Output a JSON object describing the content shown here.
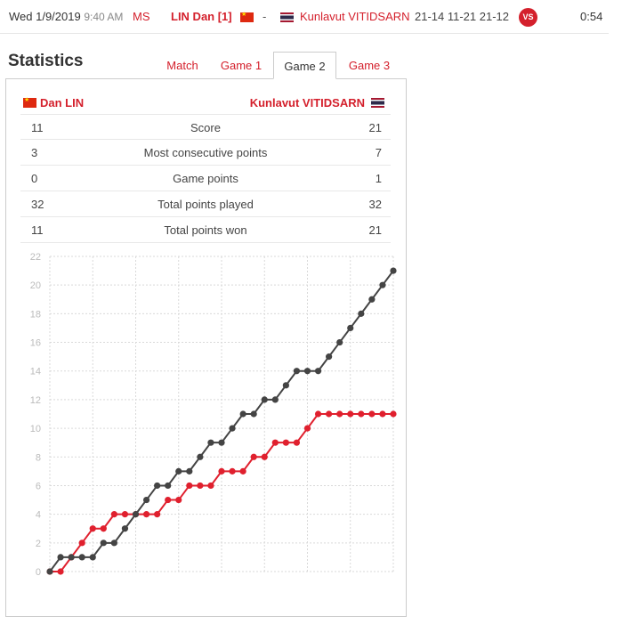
{
  "match": {
    "date": "Wed 1/9/2019",
    "time": "9:40 AM",
    "event": "MS",
    "player1": "LIN Dan [1]",
    "separator": "-",
    "player2": "Kunlavut VITIDSARN",
    "scores": "21-14 11-21 21-12",
    "vs_label": "VS",
    "duration": "0:54"
  },
  "statistics": {
    "title": "Statistics",
    "tabs": [
      {
        "label": "Match",
        "active": false
      },
      {
        "label": "Game 1",
        "active": false
      },
      {
        "label": "Game 2",
        "active": true
      },
      {
        "label": "Game 3",
        "active": false
      }
    ],
    "left_player": "Dan LIN",
    "right_player": "Kunlavut VITIDSARN",
    "rows": [
      {
        "left": "11",
        "label": "Score",
        "right": "21"
      },
      {
        "left": "3",
        "label": "Most consecutive points",
        "right": "7"
      },
      {
        "left": "0",
        "label": "Game points",
        "right": "1"
      },
      {
        "left": "32",
        "label": "Total points played",
        "right": "32"
      },
      {
        "left": "11",
        "label": "Total points won",
        "right": "21"
      }
    ]
  },
  "colors": {
    "accent": "#d4202c",
    "series_red": "#e0202e",
    "series_dark": "#444444",
    "grid": "#d9d9d9"
  },
  "chart_data": {
    "type": "line",
    "x": [
      0,
      1,
      2,
      3,
      4,
      5,
      6,
      7,
      8,
      9,
      10,
      11,
      12,
      13,
      14,
      15,
      16,
      17,
      18,
      19,
      20,
      21,
      22,
      23,
      24,
      25,
      26,
      27,
      28,
      29,
      30,
      31,
      32
    ],
    "ylim": [
      0,
      22
    ],
    "yticks": [
      0,
      2,
      4,
      6,
      8,
      10,
      12,
      14,
      16,
      18,
      20,
      22
    ],
    "grid": true,
    "series": [
      {
        "color": "#e0202e",
        "values": [
          0,
          0,
          1,
          2,
          3,
          3,
          4,
          4,
          4,
          4,
          4,
          5,
          5,
          6,
          6,
          6,
          7,
          7,
          7,
          8,
          8,
          9,
          9,
          9,
          10,
          11,
          11,
          11,
          11,
          11,
          11,
          11,
          11
        ]
      },
      {
        "color": "#444444",
        "values": [
          0,
          1,
          1,
          1,
          1,
          2,
          2,
          3,
          4,
          5,
          6,
          6,
          7,
          7,
          8,
          9,
          9,
          10,
          11,
          11,
          12,
          12,
          13,
          14,
          14,
          14,
          15,
          16,
          17,
          18,
          19,
          20,
          21
        ]
      }
    ]
  }
}
